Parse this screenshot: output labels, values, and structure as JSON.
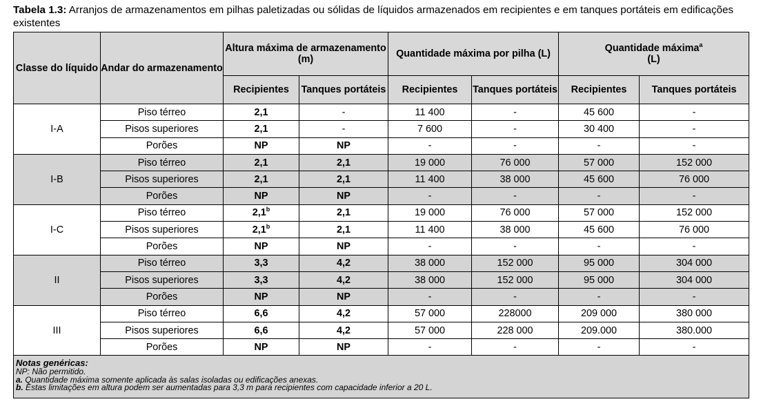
{
  "caption": {
    "label": "Tabela 1.3:",
    "text": " Arranjos de armazenamentos em pilhas paletizadas ou sólidas de líquidos armazenados em recipientes e em tanques portáteis em edificações existentes"
  },
  "header": {
    "classe": "Classe do líquido",
    "andar": "Andar do armazenamento",
    "altura": "Altura máxima de armazenamento (m)",
    "qtd_pilha": "Quantidade máxima por pilha (L)",
    "qtd_max": "Quantidade máxima",
    "qtd_max_sup": "a",
    "qtd_max_unit": "(L)",
    "recipientes": "Recipientes",
    "tanques": "Tanques portáteis"
  },
  "groups": [
    {
      "classe": "I-A",
      "rows": [
        {
          "andar": "Piso térreo",
          "alt_rec": "2,1",
          "alt_rec_sup": "",
          "alt_tan": "-",
          "pil_rec": "11 400",
          "pil_tan": "-",
          "max_rec": "45 600",
          "max_tan": "-"
        },
        {
          "andar": "Pisos superiores",
          "alt_rec": "2,1",
          "alt_rec_sup": "",
          "alt_tan": "-",
          "pil_rec": "7 600",
          "pil_tan": "-",
          "max_rec": "30 400",
          "max_tan": "-"
        },
        {
          "andar": "Porões",
          "alt_rec": "NP",
          "alt_rec_sup": "",
          "alt_tan": "NP",
          "pil_rec": "-",
          "pil_tan": "-",
          "max_rec": "-",
          "max_tan": "-"
        }
      ]
    },
    {
      "classe": "I-B",
      "rows": [
        {
          "andar": "Piso térreo",
          "alt_rec": "2,1",
          "alt_rec_sup": "",
          "alt_tan": "2,1",
          "pil_rec": "19 000",
          "pil_tan": "76 000",
          "max_rec": "57 000",
          "max_tan": "152 000"
        },
        {
          "andar": "Pisos superiores",
          "alt_rec": "2,1",
          "alt_rec_sup": "",
          "alt_tan": "2,1",
          "pil_rec": "11 400",
          "pil_tan": "38 000",
          "max_rec": "45 600",
          "max_tan": "76 000"
        },
        {
          "andar": "Porões",
          "alt_rec": "NP",
          "alt_rec_sup": "",
          "alt_tan": "NP",
          "pil_rec": "-",
          "pil_tan": "-",
          "max_rec": "-",
          "max_tan": "-"
        }
      ]
    },
    {
      "classe": "I-C",
      "rows": [
        {
          "andar": "Piso térreo",
          "alt_rec": "2,1",
          "alt_rec_sup": "b",
          "alt_tan": "2,1",
          "pil_rec": "19 000",
          "pil_tan": "76 000",
          "max_rec": "57 000",
          "max_tan": "152 000"
        },
        {
          "andar": "Pisos superiores",
          "alt_rec": "2,1",
          "alt_rec_sup": "b",
          "alt_tan": "2,1",
          "pil_rec": "11 400",
          "pil_tan": "38 000",
          "max_rec": "45 600",
          "max_tan": "76 000"
        },
        {
          "andar": "Porões",
          "alt_rec": "NP",
          "alt_rec_sup": "",
          "alt_tan": "NP",
          "pil_rec": "-",
          "pil_tan": "-",
          "max_rec": "-",
          "max_tan": "-"
        }
      ]
    },
    {
      "classe": "II",
      "rows": [
        {
          "andar": "Piso térreo",
          "alt_rec": "3,3",
          "alt_rec_sup": "",
          "alt_tan": "4,2",
          "pil_rec": "38 000",
          "pil_tan": "152 000",
          "max_rec": "95 000",
          "max_tan": "304 000"
        },
        {
          "andar": "Pisos superiores",
          "alt_rec": "3,3",
          "alt_rec_sup": "",
          "alt_tan": "4,2",
          "pil_rec": "38 000",
          "pil_tan": "152 000",
          "max_rec": "95 000",
          "max_tan": "304 000"
        },
        {
          "andar": "Porões",
          "alt_rec": "NP",
          "alt_rec_sup": "",
          "alt_tan": "NP",
          "pil_rec": "-",
          "pil_tan": "-",
          "max_rec": "-",
          "max_tan": "-"
        }
      ]
    },
    {
      "classe": "III",
      "rows": [
        {
          "andar": "Piso térreo",
          "alt_rec": "6,6",
          "alt_rec_sup": "",
          "alt_tan": "4,2",
          "pil_rec": "57 000",
          "pil_tan": "228000",
          "max_rec": "209 000",
          "max_tan": "380 000"
        },
        {
          "andar": "Pisos superiores",
          "alt_rec": "6,6",
          "alt_rec_sup": "",
          "alt_tan": "4,2",
          "pil_rec": "57 000",
          "pil_tan": "228 000",
          "max_rec": "209.000",
          "max_tan": "380.000"
        },
        {
          "andar": "Porões",
          "alt_rec": "NP",
          "alt_rec_sup": "",
          "alt_tan": "NP",
          "pil_rec": "-",
          "pil_tan": "-",
          "max_rec": "-",
          "max_tan": "-"
        }
      ]
    }
  ],
  "notes": {
    "title": "Notas genéricas:",
    "np": "NP: Não permitido.",
    "a_label": "a.",
    "a_text": " Quantidade máxima somente aplicada às salas isoladas ou edificações anexas.",
    "b_label": "b.",
    "b_text": " Estas limitações em altura podem ser aumentadas para 3,3 m para recipientes com capacidade inferior a 20 L."
  },
  "colors": {
    "header_bg": "#d8d8d8",
    "shaded_row_bg": "#d4d4d4"
  }
}
